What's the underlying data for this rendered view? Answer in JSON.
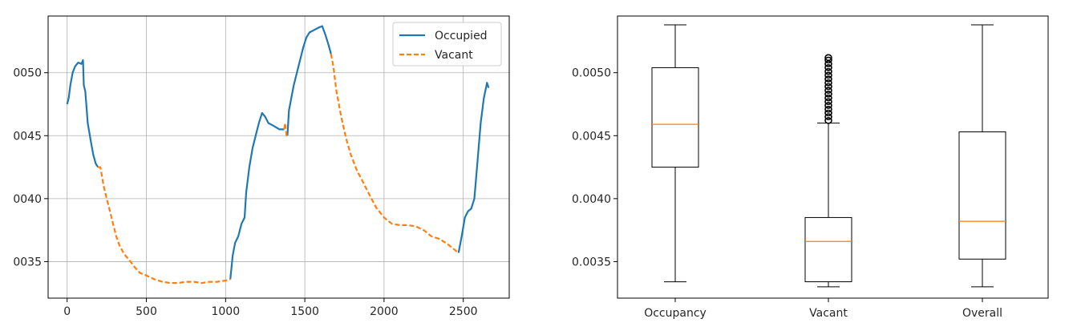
{
  "chart_data": [
    {
      "type": "line",
      "title": "",
      "xlabel": "",
      "ylabel": "",
      "xlim": [
        -120,
        2790
      ],
      "ylim": [
        0.00321,
        0.00545
      ],
      "grid": true,
      "legend": "top-right",
      "x_ticks": [
        0,
        500,
        1000,
        1500,
        2000,
        2500
      ],
      "x_tick_labels": [
        "0",
        "500",
        "1000",
        "1500",
        "2000",
        "2500"
      ],
      "y_ticks": [
        0.0035,
        0.004,
        0.0045,
        0.005
      ],
      "y_tick_labels": [
        "0035",
        "0040",
        "0045",
        "0050"
      ],
      "colors": {
        "occupied": "#1f77b4",
        "vacant": "#ff7f0e"
      },
      "series": [
        {
          "name": "Occupied",
          "style": "solid",
          "segments": [
            [
              [
                0,
                0.00475
              ],
              [
                10,
                0.0048
              ],
              [
                20,
                0.0049
              ],
              [
                35,
                0.005
              ],
              [
                50,
                0.00505
              ],
              [
                70,
                0.00508
              ],
              [
                90,
                0.00507
              ],
              [
                100,
                0.0051
              ],
              [
                105,
                0.0049
              ],
              [
                115,
                0.00485
              ],
              [
                130,
                0.0046
              ],
              [
                150,
                0.00445
              ],
              [
                165,
                0.00435
              ],
              [
                180,
                0.00428
              ],
              [
                195,
                0.00425
              ]
            ],
            [
              [
                1030,
                0.00336
              ],
              [
                1045,
                0.00355
              ],
              [
                1060,
                0.00365
              ],
              [
                1080,
                0.0037
              ],
              [
                1100,
                0.0038
              ],
              [
                1120,
                0.00385
              ],
              [
                1130,
                0.00405
              ],
              [
                1150,
                0.00425
              ],
              [
                1170,
                0.0044
              ],
              [
                1190,
                0.0045
              ],
              [
                1210,
                0.0046
              ],
              [
                1230,
                0.00468
              ],
              [
                1250,
                0.00465
              ],
              [
                1270,
                0.0046
              ],
              [
                1300,
                0.00458
              ],
              [
                1340,
                0.00455
              ],
              [
                1370,
                0.00455
              ]
            ],
            [
              [
                1390,
                0.0045
              ],
              [
                1400,
                0.0047
              ],
              [
                1430,
                0.0049
              ],
              [
                1460,
                0.00505
              ],
              [
                1490,
                0.0052
              ],
              [
                1510,
                0.00528
              ],
              [
                1530,
                0.00532
              ],
              [
                1560,
                0.00534
              ],
              [
                1590,
                0.00536
              ],
              [
                1610,
                0.00537
              ],
              [
                1630,
                0.0053
              ],
              [
                1650,
                0.00522
              ],
              [
                1665,
                0.00515
              ]
            ],
            [
              [
                2470,
                0.00357
              ],
              [
                2490,
                0.0037
              ],
              [
                2510,
                0.00385
              ],
              [
                2530,
                0.0039
              ],
              [
                2550,
                0.00392
              ],
              [
                2570,
                0.004
              ],
              [
                2590,
                0.0043
              ],
              [
                2610,
                0.0046
              ],
              [
                2630,
                0.0048
              ],
              [
                2650,
                0.00492
              ],
              [
                2660,
                0.00488
              ]
            ]
          ]
        },
        {
          "name": "Vacant",
          "style": "dashed",
          "segments": [
            [
              [
                195,
                0.00425
              ],
              [
                210,
                0.00425
              ],
              [
                230,
                0.0041
              ],
              [
                250,
                0.004
              ],
              [
                270,
                0.0039
              ],
              [
                290,
                0.0038
              ],
              [
                310,
                0.0037
              ],
              [
                330,
                0.00363
              ],
              [
                360,
                0.00356
              ],
              [
                400,
                0.0035
              ],
              [
                430,
                0.00345
              ],
              [
                460,
                0.00341
              ],
              [
                500,
                0.00339
              ],
              [
                550,
                0.00336
              ],
              [
                600,
                0.00334
              ],
              [
                650,
                0.00333
              ],
              [
                700,
                0.00333
              ],
              [
                750,
                0.00334
              ],
              [
                800,
                0.00334
              ],
              [
                850,
                0.00333
              ],
              [
                900,
                0.00334
              ],
              [
                950,
                0.00334
              ],
              [
                1000,
                0.00335
              ],
              [
                1030,
                0.00336
              ]
            ],
            [
              [
                1370,
                0.00455
              ],
              [
                1375,
                0.0046
              ],
              [
                1385,
                0.0045
              ],
              [
                1390,
                0.0045
              ]
            ],
            [
              [
                1665,
                0.00515
              ],
              [
                1680,
                0.00505
              ],
              [
                1700,
                0.00485
              ],
              [
                1730,
                0.00465
              ],
              [
                1760,
                0.00448
              ],
              [
                1790,
                0.00435
              ],
              [
                1830,
                0.00422
              ],
              [
                1860,
                0.00415
              ],
              [
                1900,
                0.00405
              ],
              [
                1950,
                0.00393
              ],
              [
                2000,
                0.00385
              ],
              [
                2050,
                0.0038
              ],
              [
                2100,
                0.00379
              ],
              [
                2150,
                0.00379
              ],
              [
                2200,
                0.00378
              ],
              [
                2250,
                0.00375
              ],
              [
                2300,
                0.0037
              ],
              [
                2350,
                0.00368
              ],
              [
                2400,
                0.00364
              ],
              [
                2440,
                0.0036
              ],
              [
                2460,
                0.00358
              ],
              [
                2470,
                0.00357
              ]
            ]
          ]
        }
      ]
    },
    {
      "type": "box",
      "title": "",
      "xlabel": "",
      "ylabel": "",
      "ylim": [
        0.00321,
        0.00545
      ],
      "y_ticks": [
        0.0035,
        0.004,
        0.0045,
        0.005
      ],
      "y_tick_labels": [
        "0.0035",
        "0.0040",
        "0.0045",
        "0.0050"
      ],
      "categories": [
        "Occupancy",
        "Vacant",
        "Overall"
      ],
      "boxes": [
        {
          "whisker_low": 0.00334,
          "q1": 0.00425,
          "median": 0.00459,
          "q3": 0.00504,
          "whisker_high": 0.00538,
          "outliers": []
        },
        {
          "whisker_low": 0.0033,
          "q1": 0.00334,
          "median": 0.00366,
          "q3": 0.00385,
          "whisker_high": 0.0046,
          "outliers": [
            0.00462,
            0.00465,
            0.00468,
            0.00471,
            0.00474,
            0.00477,
            0.0048,
            0.00483,
            0.00486,
            0.00489,
            0.00492,
            0.00495,
            0.00498,
            0.00501,
            0.00504,
            0.00507,
            0.0051,
            0.00512
          ]
        },
        {
          "whisker_low": 0.0033,
          "q1": 0.00352,
          "median": 0.00382,
          "q3": 0.00453,
          "whisker_high": 0.00538,
          "outliers": []
        }
      ],
      "colors": {
        "box": "#000000",
        "median": "#ff7f0e"
      }
    }
  ]
}
